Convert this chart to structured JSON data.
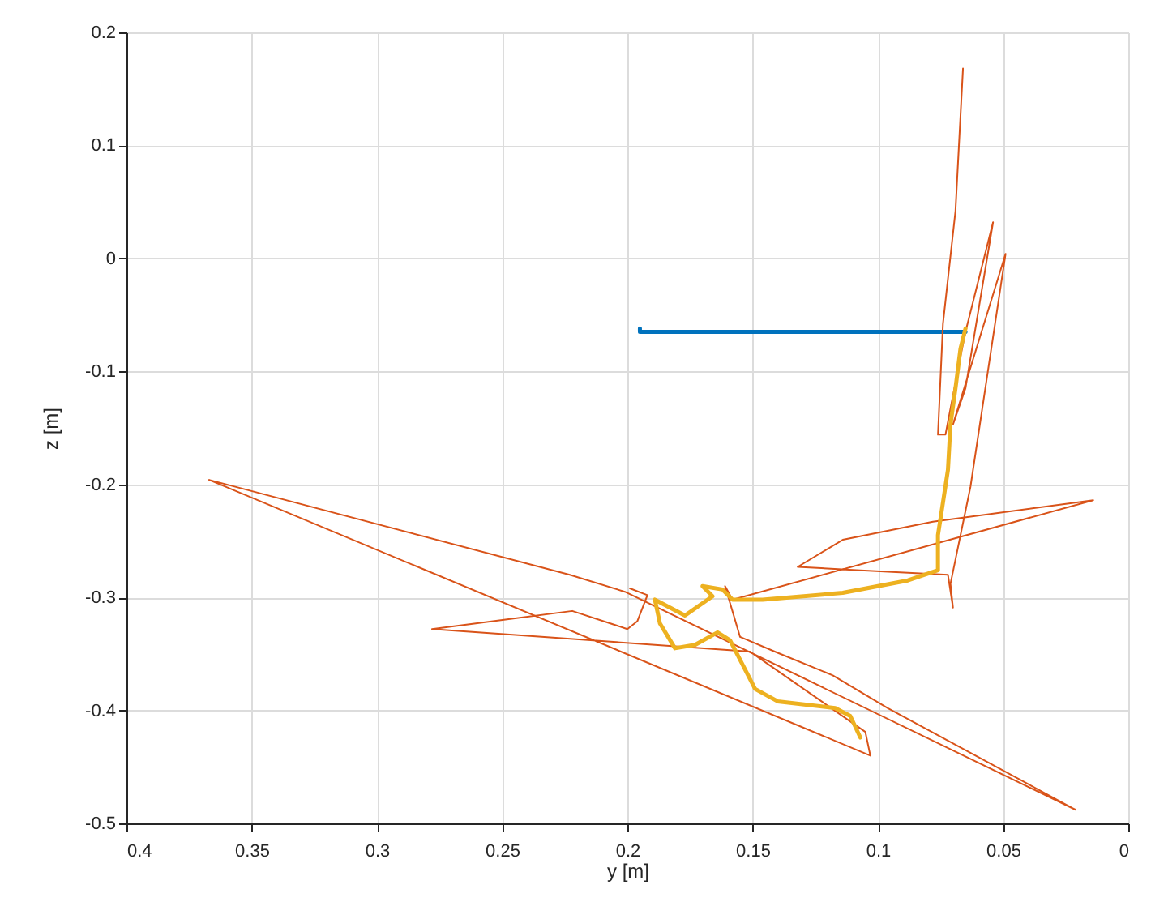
{
  "chart_data": {
    "type": "line",
    "xlabel": "y [m]",
    "ylabel": "z [m]",
    "xlim": [
      0.4,
      0
    ],
    "ylim": [
      -0.5,
      0.2
    ],
    "xticks": [
      0.4,
      0.35,
      0.3,
      0.25,
      0.2,
      0.15,
      0.1,
      0.05,
      0
    ],
    "yticks": [
      -0.5,
      -0.4,
      -0.3,
      -0.2,
      -0.1,
      0,
      0.1,
      0.2
    ],
    "grid": true,
    "line_style": "solid",
    "series": [
      {
        "color": "#0072bd",
        "x": [
          0.195,
          0.195,
          0.065
        ],
        "values": [
          -0.062,
          -0.065,
          -0.065
        ]
      },
      {
        "color": "#d95319",
        "x": [
          0.066,
          0.069,
          0.074,
          0.076,
          0.073,
          0.067,
          0.065,
          0.054,
          0.065,
          0.07,
          0.049,
          0.063,
          0.071,
          0.07,
          0.072,
          0.107,
          0.132,
          0.114,
          0.078,
          0.014,
          0.158,
          0.161,
          0.155,
          0.14,
          0.118,
          0.096,
          0.021,
          0.201,
          0.223,
          0.367,
          0.103,
          0.105,
          0.151,
          0.278,
          0.222,
          0.2,
          0.196,
          0.192,
          0.199
        ],
        "values": [
          0.168,
          0.042,
          -0.058,
          -0.156,
          -0.156,
          -0.087,
          -0.065,
          0.032,
          -0.115,
          -0.147,
          0.004,
          -0.202,
          -0.288,
          -0.309,
          -0.28,
          -0.276,
          -0.273,
          -0.249,
          -0.233,
          -0.214,
          -0.302,
          -0.29,
          -0.335,
          -0.349,
          -0.369,
          -0.398,
          -0.488,
          -0.295,
          -0.28,
          -0.196,
          -0.44,
          -0.419,
          -0.348,
          -0.328,
          -0.312,
          -0.328,
          -0.321,
          -0.298,
          -0.292
        ]
      },
      {
        "color": "#edb120",
        "x": [
          0.065,
          0.067,
          0.069,
          0.071,
          0.072,
          0.074,
          0.076,
          0.076,
          0.088,
          0.114,
          0.146,
          0.158,
          0.162,
          0.17,
          0.166,
          0.177,
          0.189,
          0.187,
          0.181,
          0.173,
          0.164,
          0.159,
          0.149,
          0.14,
          0.117,
          0.111,
          0.107
        ],
        "values": [
          -0.062,
          -0.08,
          -0.115,
          -0.147,
          -0.187,
          -0.216,
          -0.245,
          -0.276,
          -0.285,
          -0.296,
          -0.302,
          -0.302,
          -0.293,
          -0.29,
          -0.299,
          -0.316,
          -0.302,
          -0.323,
          -0.345,
          -0.342,
          -0.331,
          -0.338,
          -0.381,
          -0.392,
          -0.398,
          -0.405,
          -0.424
        ]
      }
    ]
  }
}
